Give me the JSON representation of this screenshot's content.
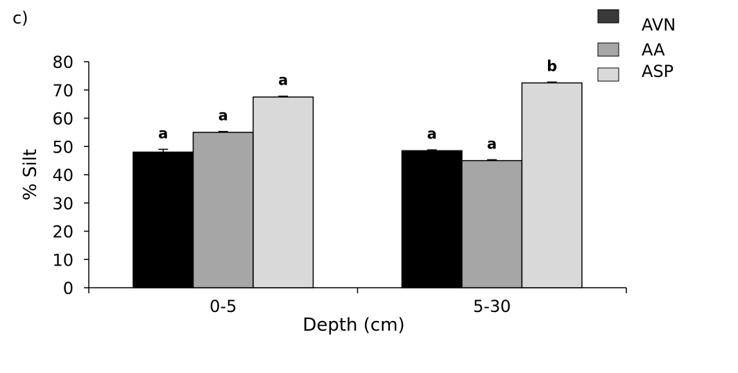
{
  "panel_label": "c)",
  "chart_data": {
    "type": "bar",
    "title": "",
    "xlabel": "Depth (cm)",
    "ylabel": "% Silt",
    "categories": [
      "0-5",
      "5-30"
    ],
    "ylim": [
      0,
      80
    ],
    "yticks": [
      0,
      10,
      20,
      30,
      40,
      50,
      60,
      70,
      80
    ],
    "grid": false,
    "legend_position": "top-right",
    "series": [
      {
        "name": "AVN",
        "values": [
          48,
          48.5
        ],
        "errors": [
          1.0,
          0.3
        ],
        "letters": [
          "a",
          "a"
        ],
        "color": "#000000",
        "legend_color": "#3a3a3a"
      },
      {
        "name": "AA",
        "values": [
          55,
          45
        ],
        "errors": [
          0.3,
          0.3
        ],
        "letters": [
          "a",
          "a"
        ],
        "color": "#a6a6a6",
        "legend_color": "#a6a6a6"
      },
      {
        "name": "ASP",
        "values": [
          67.5,
          72.5
        ],
        "errors": [
          0.3,
          0.3
        ],
        "letters": [
          "a",
          "b"
        ],
        "color": "#d9d9d9",
        "legend_color": "#d9d9d9"
      }
    ]
  }
}
